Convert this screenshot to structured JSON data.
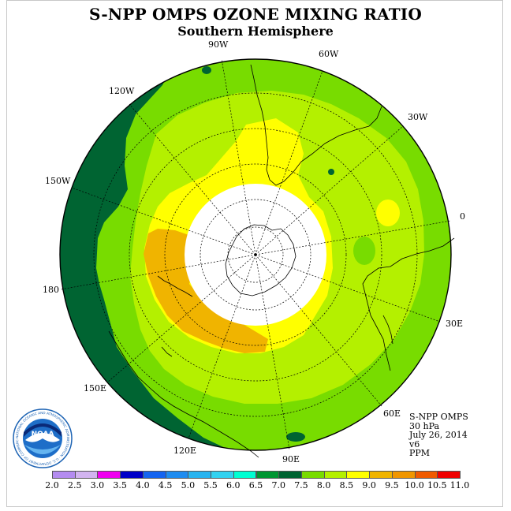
{
  "title": "S-NPP OMPS OZONE MIXING RATIO",
  "subtitle": "Southern Hemisphere",
  "longitude_labels": {
    "w90": "90W",
    "w60": "60W",
    "w120": "120W",
    "w30": "30W",
    "w150": "150W",
    "zero": "0",
    "e180": "180",
    "e30": "30E",
    "e150": "150E",
    "e60": "60E",
    "e120": "120E",
    "e90": "90E"
  },
  "info": {
    "instrument": "S-NPP OMPS",
    "level": "30 hPa",
    "date": "July 26, 2014",
    "version": "v6",
    "units": "PPM"
  },
  "logo": {
    "text": "NOAA",
    "ring_text": "NATIONAL OCEANIC AND ATMOSPHERIC ADMINISTRATION · U.S. DEPARTMENT OF COMMERCE"
  },
  "colorbar": {
    "ticks": [
      "2.0",
      "2.5",
      "3.0",
      "3.5",
      "4.0",
      "4.5",
      "5.0",
      "5.5",
      "6.0",
      "6.5",
      "7.0",
      "7.5",
      "8.0",
      "8.5",
      "9.0",
      "9.5",
      "10.0",
      "10.5",
      "11.0"
    ],
    "colors": [
      "#b48cf0",
      "#d2b4f0",
      "#f000f0",
      "#0000c8",
      "#1464f0",
      "#1e8cf0",
      "#28b4f0",
      "#32d2f0",
      "#00ffd2",
      "#009632",
      "#006432",
      "#78dc00",
      "#b4f000",
      "#ffff00",
      "#f0b400",
      "#f09600",
      "#f05a00",
      "#f00000",
      "#a05a3c"
    ]
  },
  "map_colors": {
    "band_6_5_7_0": "#006432",
    "band_7_0_7_5": "#78dc00",
    "band_7_5_8_0": "#b4f000",
    "band_8_0_8_5": "#ffff00",
    "band_8_5_9_0": "#f0b400",
    "no_data": "#ffffff"
  }
}
